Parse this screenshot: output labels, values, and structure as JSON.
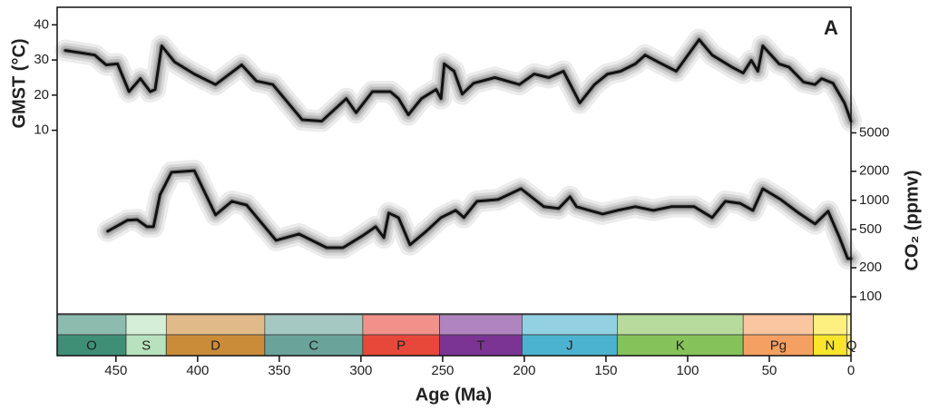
{
  "chart_data": {
    "type": "line",
    "panel_label": "A",
    "xlabel": "Age (Ma)",
    "ylabel": "GMST (°C)",
    "y2label": "CO₂ (ppmv)",
    "xlim": [
      486,
      0
    ],
    "xticks": [
      450,
      400,
      350,
      300,
      250,
      200,
      150,
      100,
      50,
      0
    ],
    "ylim": [
      -42,
      45
    ],
    "yticks": [
      10,
      20,
      30,
      40
    ],
    "y2lim": [
      68,
      100000
    ],
    "y2scale": "log",
    "y2ticks": [
      100,
      200,
      500,
      1000,
      2000,
      5000
    ],
    "series": [
      {
        "color": "#111111",
        "x": [
          481,
          471,
          463,
          456,
          449,
          442,
          435,
          429,
          426,
          422,
          414,
          402,
          389,
          373,
          364,
          354,
          336,
          324,
          309,
          303,
          293,
          282,
          277,
          271,
          263,
          254,
          251,
          249,
          243,
          238,
          231,
          218,
          203,
          194,
          185,
          176,
          166,
          157,
          149,
          141,
          132,
          126,
          118,
          107,
          93,
          85,
          73,
          66,
          61,
          57,
          54,
          44,
          38,
          29,
          22,
          18,
          11,
          4,
          0
        ],
        "values": [
          32.7,
          32,
          31.4,
          28.6,
          28.9,
          21,
          24.7,
          21,
          21.6,
          34,
          29.4,
          26,
          23,
          28.6,
          24,
          23,
          13,
          12.6,
          19,
          15,
          21,
          21,
          19,
          14.4,
          19,
          21.6,
          19,
          28.9,
          26.8,
          20.3,
          23.4,
          25,
          23,
          26,
          25,
          26.8,
          17.8,
          23,
          26,
          26.8,
          28.9,
          31.4,
          29.4,
          26.8,
          35.8,
          31.4,
          28,
          26.3,
          29.9,
          26.8,
          34,
          28.9,
          28,
          23.7,
          23,
          24.7,
          23.4,
          17.8,
          12.6
        ]
      },
      {
        "color": "#111111",
        "axis": "y2",
        "x": [
          455,
          443,
          437,
          431,
          427,
          423,
          416,
          402,
          389,
          379,
          370,
          352,
          338,
          321,
          311,
          299,
          291,
          286,
          283,
          277,
          270,
          260,
          251,
          242,
          237,
          229,
          216,
          202,
          188,
          179,
          172,
          168,
          160,
          152,
          143,
          132,
          121,
          110,
          96,
          85,
          77,
          68,
          60,
          54,
          43,
          32,
          22,
          14,
          7,
          2,
          0
        ],
        "values": [
          479,
          621,
          630,
          533,
          533,
          1140,
          1950,
          2030,
          706,
          977,
          893,
          385,
          448,
          323,
          323,
          430,
          533,
          411,
          738,
          662,
          346,
          479,
          662,
          787,
          662,
          977,
          1020,
          1320,
          859,
          822,
          1090,
          859,
          787,
          721,
          787,
          859,
          787,
          859,
          859,
          662,
          977,
          930,
          787,
          1320,
          1020,
          738,
          569,
          771,
          411,
          249,
          249
        ]
      }
    ],
    "periods": [
      {
        "label": "O",
        "start": 486,
        "end": 443.8,
        "color": "#3f8f76"
      },
      {
        "label": "S",
        "start": 443.8,
        "end": 419.2,
        "color": "#b8e2bd"
      },
      {
        "label": "D",
        "start": 419.2,
        "end": 358.9,
        "color": "#cb8c3a"
      },
      {
        "label": "C",
        "start": 358.9,
        "end": 298.9,
        "color": "#6aa39a"
      },
      {
        "label": "P",
        "start": 298.9,
        "end": 251.9,
        "color": "#e8483a"
      },
      {
        "label": "T",
        "start": 251.9,
        "end": 201.4,
        "color": "#7c3494"
      },
      {
        "label": "J",
        "start": 201.4,
        "end": 143.1,
        "color": "#4bb3cf"
      },
      {
        "label": "K",
        "start": 143.1,
        "end": 66,
        "color": "#85c35a"
      },
      {
        "label": "Pg",
        "start": 66,
        "end": 23,
        "color": "#f5a063"
      },
      {
        "label": "N",
        "start": 23,
        "end": 2.58,
        "color": "#fbe52c"
      },
      {
        "label": "Q",
        "start": 2.58,
        "end": 0,
        "color": "#f6f28c"
      }
    ]
  }
}
